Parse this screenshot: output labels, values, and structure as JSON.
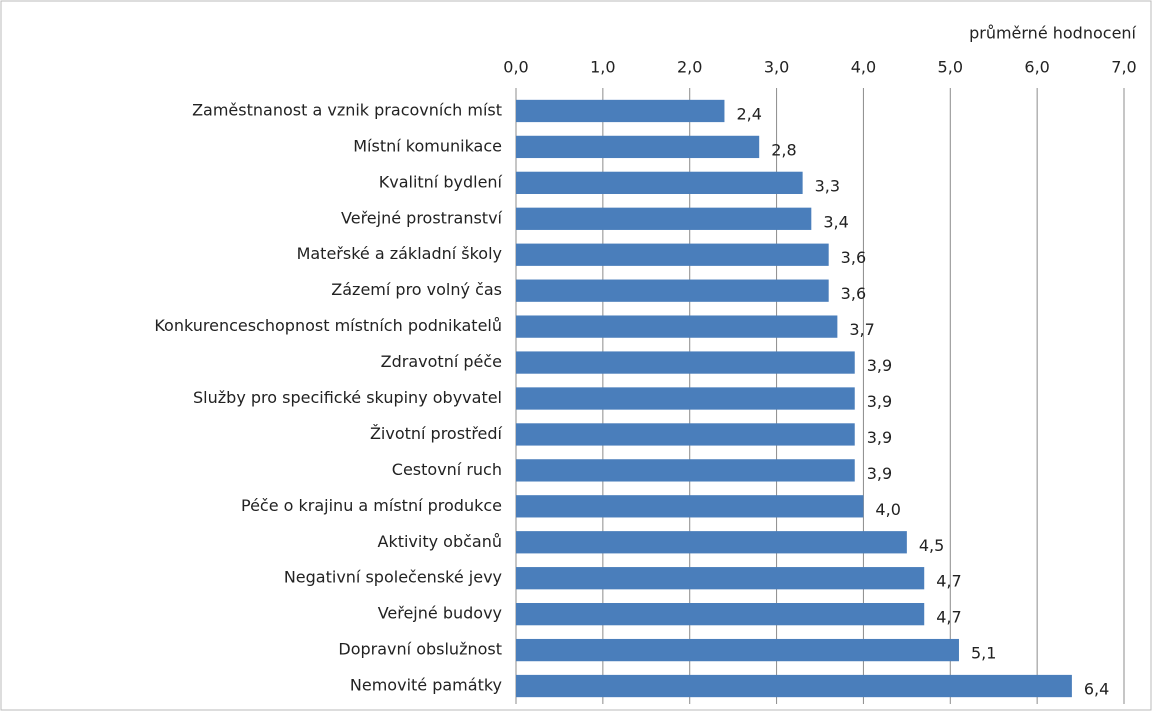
{
  "chart_data": {
    "type": "bar",
    "orientation": "horizontal",
    "x_axis_label": "průměrné hodnocení",
    "categories": [
      "Zaměstnanost a vznik pracovních míst",
      "Místní komunikace",
      "Kvalitní bydlení",
      "Veřejné prostranství",
      "Mateřské a základní školy",
      "Zázemí pro volný čas",
      "Konkurenceschopnost místních podnikatelů",
      "Zdravotní péče",
      "Služby pro specifické skupiny obyvatel",
      "Životní prostředí",
      "Cestovní ruch",
      "Péče o krajinu a místní produkce",
      "Aktivity občanů",
      "Negativní společenské jevy",
      "Veřejné budovy",
      "Dopravní obslužnost",
      "Nemovité památky"
    ],
    "values": [
      2.4,
      2.8,
      3.3,
      3.4,
      3.6,
      3.6,
      3.7,
      3.9,
      3.9,
      3.9,
      3.9,
      4.0,
      4.5,
      4.7,
      4.7,
      5.1,
      6.4
    ],
    "value_labels": [
      "2,4",
      "2,8",
      "3,3",
      "3,4",
      "3,6",
      "3,6",
      "3,7",
      "3,9",
      "3,9",
      "3,9",
      "3,9",
      "4,0",
      "4,5",
      "4,7",
      "4,7",
      "5,1",
      "6,4"
    ],
    "color": "#4a7ebb",
    "xlim": [
      0,
      7
    ],
    "xticks": [
      {
        "value": 0,
        "label": "0,0"
      },
      {
        "value": 1,
        "label": "1,0"
      },
      {
        "value": 2,
        "label": "2,0"
      },
      {
        "value": 3,
        "label": "3,0"
      },
      {
        "value": 4,
        "label": "4,0"
      },
      {
        "value": 5,
        "label": "5,0"
      },
      {
        "value": 6,
        "label": "6,0"
      },
      {
        "value": 7,
        "label": "7,0"
      }
    ],
    "grid": true
  }
}
